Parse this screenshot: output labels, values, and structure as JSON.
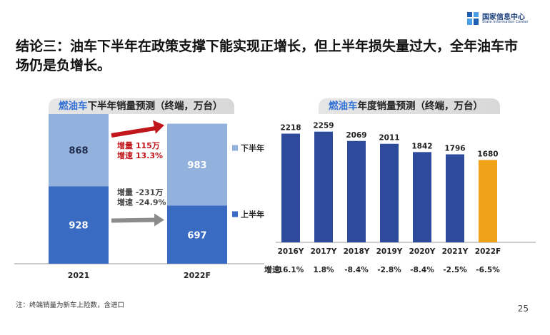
{
  "header": {
    "logo_cn": "国家信息中心",
    "logo_en": "State Information Center",
    "headline": "结论三：油车下半年在政策支撑下能实现正增长，但上半年损失量过大，全年油车市场仍是负增长。"
  },
  "left_panel": {
    "title_accent": "燃油车",
    "title_rest": "下半年销量预测（终端，万台）"
  },
  "right_panel": {
    "title_accent": "燃油车",
    "title_rest": "年度销量预测（终端，万台）",
    "growth_label": "增速"
  },
  "chart_data": [
    {
      "type": "bar",
      "stacked": true,
      "categories": [
        "2021",
        "2022F"
      ],
      "series": [
        {
          "name": "上半年",
          "values": [
            928,
            697
          ],
          "color": "#3a6bc2"
        },
        {
          "name": "下半年",
          "values": [
            868,
            983
          ],
          "color": "#92b1dd"
        }
      ],
      "legend_position": "right",
      "annotations": [
        {
          "lines": [
            "增量 115万",
            "增速 13.3%"
          ],
          "color": "#c0161c",
          "arrow_color": "#c0161c"
        },
        {
          "lines": [
            "增量 -231万",
            "增速 -24.9%"
          ],
          "color": "#444444",
          "arrow_color": "#8c8c8c"
        }
      ]
    },
    {
      "type": "bar",
      "categories": [
        "2016Y",
        "2017Y",
        "2018Y",
        "2019Y",
        "2020Y",
        "2021Y",
        "2022F"
      ],
      "values": [
        2218,
        2259,
        2069,
        2011,
        1842,
        1796,
        1680
      ],
      "growth": [
        "16.1%",
        "1.8%",
        "-8.4%",
        "-2.8%",
        "-8.4%",
        "-2.5%",
        "-6.5%"
      ],
      "bar_color": "#2e4b9b",
      "forecast_color": "#f0a21a",
      "ylim": [
        0,
        2400
      ]
    }
  ],
  "footer": {
    "note": "注：终端销量为新车上险数，含进口",
    "page": "25"
  }
}
